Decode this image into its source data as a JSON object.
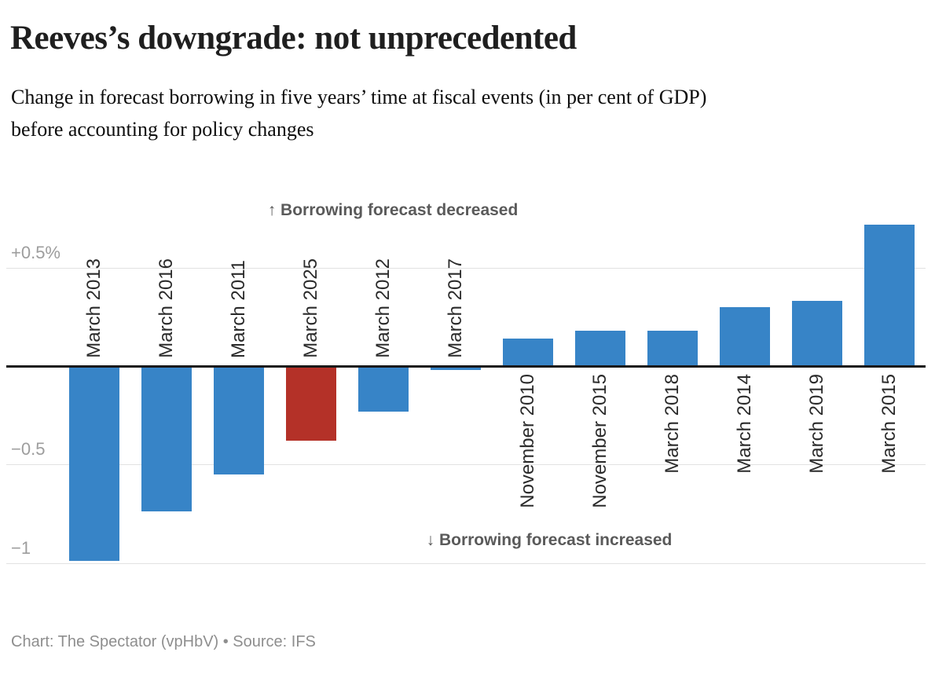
{
  "header": {
    "title": "Reeves’s downgrade: not unprecedented",
    "subtitle_line1": "Change in forecast borrowing in five years’ time at fiscal events (in per cent of GDP)",
    "subtitle_line2": "before accounting for policy changes"
  },
  "chart_data": {
    "type": "bar",
    "title": "Reeves’s downgrade: not unprecedented",
    "subtitle": "Change in forecast borrowing in five years’ time at fiscal events (in per cent of GDP) before accounting for policy changes",
    "unit": "per cent of GDP",
    "categories": [
      "March 2013",
      "March 2016",
      "March 2011",
      "March 2025",
      "March 2012",
      "March 2017",
      "November 2010",
      "November 2015",
      "March 2018",
      "March 2014",
      "March 2019",
      "March 2015"
    ],
    "values": [
      -0.99,
      -0.74,
      -0.55,
      -0.38,
      -0.23,
      -0.02,
      0.14,
      0.18,
      0.18,
      0.3,
      0.33,
      0.72
    ],
    "highlight_category": "March 2025",
    "colors": {
      "default": "#3784c7",
      "highlight": "#b43128"
    },
    "ylim": [
      -1.05,
      0.8
    ],
    "yticks": [
      {
        "value": 0.5,
        "label": "+0.5%"
      },
      {
        "value": -0.5,
        "label": "−0.5"
      },
      {
        "value": -1,
        "label": "−1"
      }
    ],
    "grid": "horizontal",
    "legend": "none",
    "annotation_top": {
      "arrow": "↑",
      "text": "Borrowing forecast decreased"
    },
    "annotation_bottom": {
      "arrow": "↓",
      "text": "Borrowing forecast increased"
    }
  },
  "footer": {
    "credit": "Chart: The Spectator (vpHbV) • Source: IFS"
  }
}
